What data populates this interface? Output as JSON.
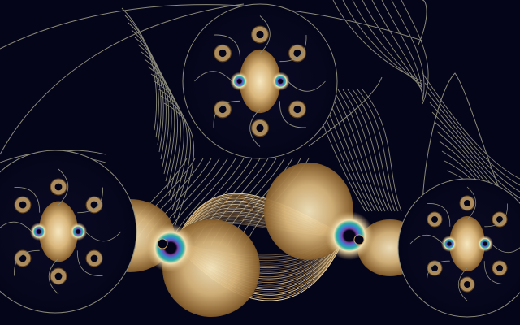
{
  "image": {
    "subject": "fractal-render",
    "palette": {
      "background": "#05051a",
      "line": "#8a8a7a",
      "gold_light": "#f2dfb0",
      "gold": "#c9a468",
      "gold_dark": "#6b4a20",
      "teal": "#2fb0a0",
      "blue": "#3a7fd0",
      "violet": "#7a3fa0"
    }
  }
}
